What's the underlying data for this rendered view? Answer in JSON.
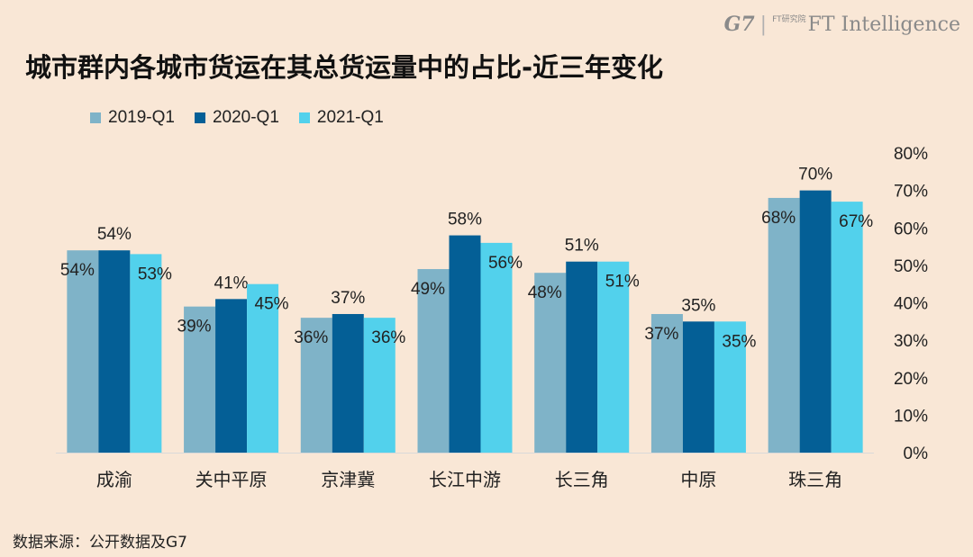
{
  "brand": {
    "g7": "G7",
    "divider": "|",
    "ft_small": "FT研究院",
    "ft": "FT Intelligence"
  },
  "title": "城市群内各城市货运在其总货运量中的占比-近三年变化",
  "source": "数据来源：公开数据及G7",
  "chart_data": {
    "type": "bar",
    "categories": [
      "成渝",
      "关中平原",
      "京津冀",
      "长江中游",
      "长三角",
      "中原",
      "珠三角"
    ],
    "series": [
      {
        "name": "2019-Q1",
        "color": "#7fb3c8",
        "values": [
          54,
          39,
          36,
          49,
          48,
          37,
          68
        ],
        "labels": [
          "54%",
          "39%",
          "36%",
          "49%",
          "48%",
          "37%",
          "68%"
        ]
      },
      {
        "name": "2020-Q1",
        "color": "#045f96",
        "values": [
          54,
          41,
          37,
          58,
          51,
          35,
          70
        ],
        "labels": [
          "54%",
          "41%",
          "37%",
          "58%",
          "51%",
          "35%",
          "70%"
        ]
      },
      {
        "name": "2021-Q1",
        "color": "#52d1ec",
        "values": [
          53,
          45,
          36,
          56,
          51,
          35,
          67
        ],
        "labels": [
          "53%",
          "45%",
          "36%",
          "56%",
          "51%",
          "35%",
          "67%"
        ]
      }
    ],
    "yticks": [
      "0%",
      "10%",
      "20%",
      "30%",
      "40%",
      "50%",
      "60%",
      "70%",
      "80%"
    ],
    "ylim": [
      0,
      80
    ],
    "y_axis_side": "right",
    "grid": false,
    "legend": "top-left"
  }
}
